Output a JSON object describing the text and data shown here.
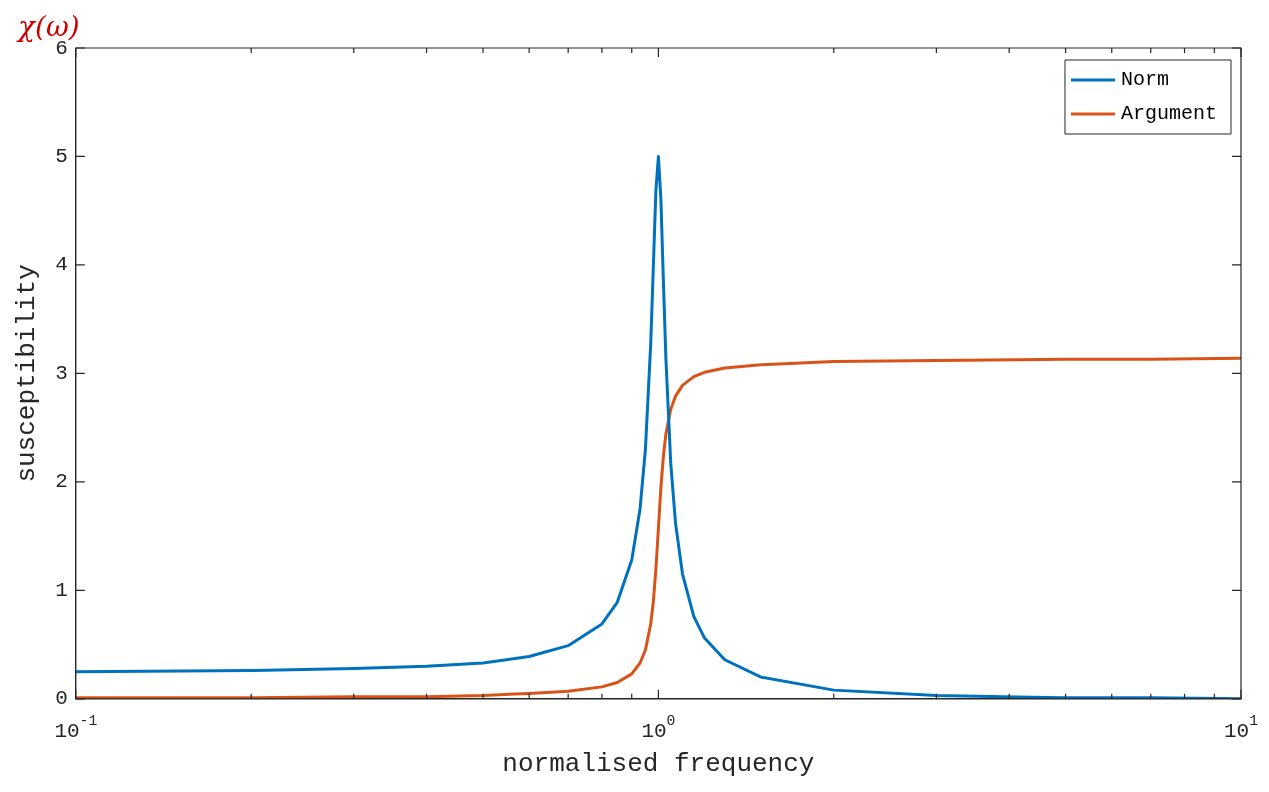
{
  "chart_data": {
    "type": "line",
    "xlabel": "normalised frequency",
    "ylabel": "susceptibility",
    "annotations": [
      "χ(ω)"
    ],
    "log": "x",
    "legend": "top right",
    "marker": "none",
    "line_style": "solid",
    "x": [
      0.1,
      0.2,
      0.3,
      0.4,
      0.5,
      0.6,
      0.7,
      0.8,
      0.85,
      0.9,
      0.93,
      0.95,
      0.97,
      0.98,
      0.99,
      1.0,
      1.01,
      1.02,
      1.03,
      1.05,
      1.07,
      1.1,
      1.15,
      1.2,
      1.3,
      1.5,
      2,
      3,
      5,
      7,
      10
    ],
    "xlim": [
      0.1,
      10
    ],
    "xticks": [
      {
        "value": 0.1,
        "label": "10$^{-1}$"
      },
      {
        "value": 0.2,
        "label": null
      },
      {
        "value": 0.3,
        "label": null
      },
      {
        "value": 0.4,
        "label": null
      },
      {
        "value": 0.5,
        "label": null
      },
      {
        "value": 0.6,
        "label": null
      },
      {
        "value": 0.7,
        "label": null
      },
      {
        "value": 0.8,
        "label": null
      },
      {
        "value": 0.9,
        "label": null
      },
      {
        "value": 1,
        "label": "10$^{0}$"
      },
      {
        "value": 2,
        "label": null
      },
      {
        "value": 3,
        "label": null
      },
      {
        "value": 4,
        "label": null
      },
      {
        "value": 5,
        "label": null
      },
      {
        "value": 6,
        "label": null
      },
      {
        "value": 7,
        "label": null
      },
      {
        "value": 8,
        "label": null
      },
      {
        "value": 9,
        "label": null
      },
      {
        "value": 10,
        "label": "10$^{1}$"
      }
    ],
    "ylim": [
      0,
      6
    ],
    "yticks": [
      0,
      1,
      2,
      3,
      4,
      5,
      6
    ],
    "series": [
      {
        "name": "Norm",
        "color": "#0072bd",
        "values": [
          0.25,
          0.26,
          0.28,
          0.3,
          0.33,
          0.39,
          0.49,
          0.69,
          0.89,
          1.28,
          1.75,
          2.3,
          3.27,
          3.97,
          4.68,
          5.0,
          4.6,
          3.84,
          3.14,
          2.17,
          1.62,
          1.15,
          0.76,
          0.56,
          0.36,
          0.2,
          0.08,
          0.03,
          0.01,
          0.01,
          0.0
        ]
      },
      {
        "name": "Argument",
        "color": "#d95319",
        "values": [
          0.01,
          0.01,
          0.02,
          0.02,
          0.03,
          0.05,
          0.07,
          0.11,
          0.15,
          0.23,
          0.33,
          0.45,
          0.69,
          0.89,
          1.19,
          1.57,
          1.95,
          2.24,
          2.44,
          2.67,
          2.79,
          2.89,
          2.97,
          3.01,
          3.05,
          3.08,
          3.11,
          3.12,
          3.13,
          3.13,
          3.14
        ]
      }
    ]
  }
}
